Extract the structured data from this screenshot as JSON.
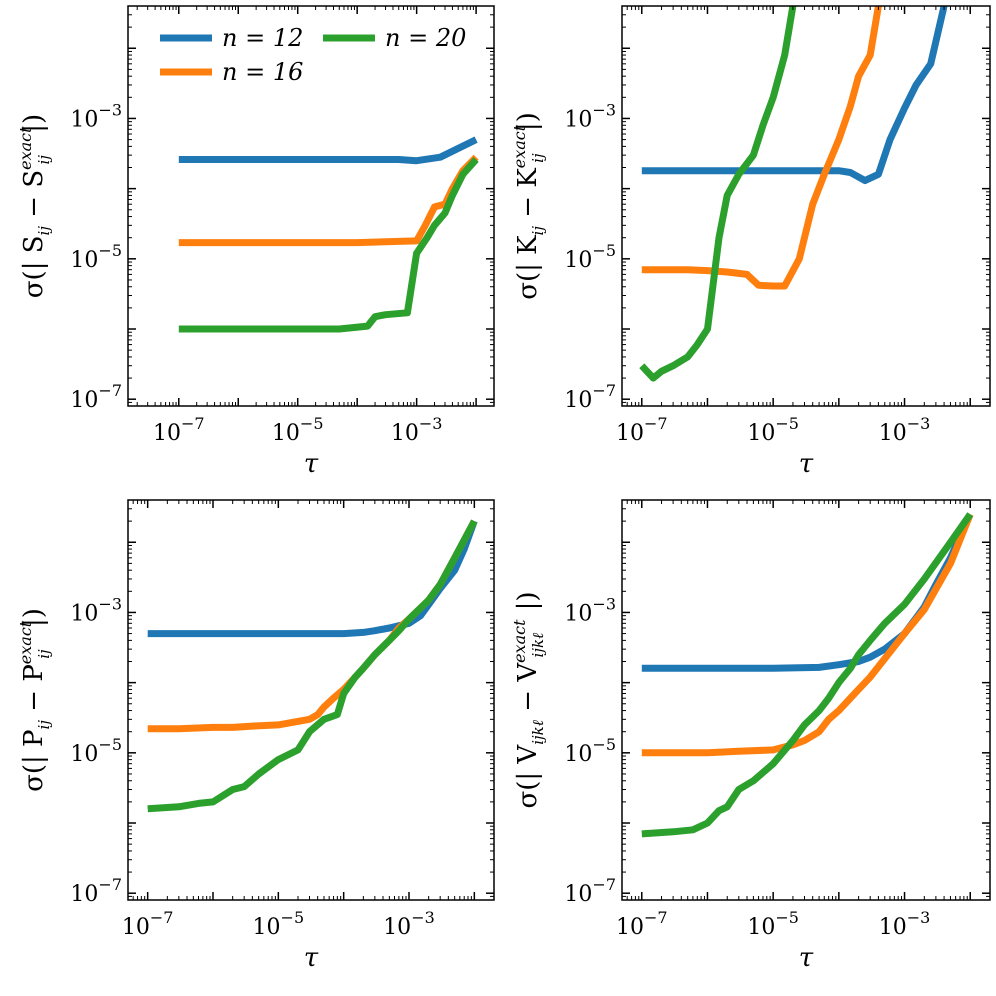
{
  "legend": {
    "location": "upper left of first panel",
    "entries": [
      {
        "text": "n = 12",
        "color": "#1f77b4"
      },
      {
        "text": "n = 16",
        "color": "#ff7f0e"
      },
      {
        "text": "n = 20",
        "color": "#2ca02c"
      }
    ]
  },
  "chart_data": [
    {
      "type": "line",
      "xlabel": "τ",
      "ylabel": {
        "pre": "σ(| S",
        "sub1": "ij",
        "mid": " − S",
        "sup": "exact",
        "sub2": "ij",
        "post": " |)"
      },
      "x_scale": "log",
      "y_scale": "log",
      "xlim": [
        1.4e-08,
        0.02
      ],
      "ylim": [
        8e-08,
        0.04
      ],
      "x_ticks": [
        "1e-7",
        "1e-5",
        "1e-3"
      ],
      "y_ticks": [
        "1e-7",
        "1e-5",
        "1e-3"
      ],
      "grid": false,
      "series": [
        {
          "name": "n = 12",
          "color": "#1f77b4",
          "x": [
            1e-07,
            1e-06,
            1e-05,
            0.0001,
            0.0005,
            0.001,
            0.0025,
            0.01
          ],
          "y": [
            0.00026,
            0.00026,
            0.00026,
            0.00026,
            0.00026,
            0.00025,
            0.00028,
            0.0005
          ]
        },
        {
          "name": "n = 16",
          "color": "#ff7f0e",
          "x": [
            1e-07,
            1e-06,
            1e-05,
            0.0001,
            0.001,
            0.0014,
            0.002,
            0.003,
            0.004,
            0.006,
            0.01
          ],
          "y": [
            1.7e-05,
            1.7e-05,
            1.7e-05,
            1.7e-05,
            1.8e-05,
            3e-05,
            5.5e-05,
            6e-05,
            0.0001,
            0.00018,
            0.00028
          ]
        },
        {
          "name": "n = 20",
          "color": "#2ca02c",
          "x": [
            1e-07,
            1e-05,
            5e-05,
            0.00015,
            0.0002,
            0.0003,
            0.0007,
            0.001,
            0.0015,
            0.002,
            0.003,
            0.004,
            0.006,
            0.01
          ],
          "y": [
            1e-06,
            1e-06,
            1e-06,
            1.1e-06,
            1.5e-06,
            1.6e-06,
            1.7e-06,
            1.2e-05,
            2e-05,
            3e-05,
            4.5e-05,
            8e-05,
            0.00016,
            0.00026
          ]
        }
      ]
    },
    {
      "type": "line",
      "xlabel": "τ",
      "ylabel": {
        "pre": "σ(| K",
        "sub1": "ij",
        "mid": " − K",
        "sup": "exact",
        "sub2": "ij",
        "post": " |)"
      },
      "x_scale": "log",
      "y_scale": "log",
      "xlim": [
        5e-08,
        0.02
      ],
      "ylim": [
        8e-08,
        0.04
      ],
      "x_ticks": [
        "1e-7",
        "1e-5",
        "1e-3"
      ],
      "y_ticks": [
        "1e-7",
        "1e-5",
        "1e-3"
      ],
      "grid": false,
      "series": [
        {
          "name": "n = 12",
          "color": "#1f77b4",
          "x": [
            1e-07,
            1e-05,
            0.0001,
            0.00015,
            0.00025,
            0.0004,
            0.0006,
            0.001,
            0.0015,
            0.0025,
            0.004
          ],
          "y": [
            0.00018,
            0.00018,
            0.00018,
            0.00017,
            0.00013,
            0.00016,
            0.0005,
            0.0014,
            0.003,
            0.006,
            0.04
          ]
        },
        {
          "name": "n = 16",
          "color": "#ff7f0e",
          "x": [
            1e-07,
            5e-07,
            1e-06,
            2e-06,
            4e-06,
            6e-06,
            1e-05,
            1.5e-05,
            2.5e-05,
            4e-05,
            6e-05,
            0.0001,
            0.00015,
            0.0002,
            0.0003,
            0.0004
          ],
          "y": [
            7e-06,
            7e-06,
            6.8e-06,
            6.5e-06,
            6e-06,
            4.2e-06,
            4.1e-06,
            4.1e-06,
            1e-05,
            6e-05,
            0.00016,
            0.0005,
            0.0015,
            0.004,
            0.008,
            0.04
          ]
        },
        {
          "name": "n = 20",
          "color": "#2ca02c",
          "x": [
            1e-07,
            1.5e-07,
            2e-07,
            3e-07,
            5e-07,
            7e-07,
            1e-06,
            1.5e-06,
            2e-06,
            3e-06,
            5e-06,
            7e-06,
            1e-05,
            1.5e-05,
            2e-05
          ],
          "y": [
            3e-07,
            2e-07,
            2.5e-07,
            3e-07,
            4e-07,
            6e-07,
            1e-06,
            2e-05,
            8e-05,
            0.00016,
            0.0003,
            0.0008,
            0.002,
            0.008,
            0.04
          ]
        }
      ]
    },
    {
      "type": "line",
      "xlabel": "τ",
      "ylabel": {
        "pre": "σ(| P",
        "sub1": "ij",
        "mid": " − P",
        "sup": "exact",
        "sub2": "ij",
        "post": " |)"
      },
      "x_scale": "log",
      "y_scale": "log",
      "xlim": [
        5e-08,
        0.02
      ],
      "ylim": [
        8e-08,
        0.04
      ],
      "x_ticks": [
        "1e-7",
        "1e-5",
        "1e-3"
      ],
      "y_ticks": [
        "1e-7",
        "1e-5",
        "1e-3"
      ],
      "grid": false,
      "series": [
        {
          "name": "n = 12",
          "color": "#1f77b4",
          "x": [
            1e-07,
            1e-06,
            1e-05,
            5e-05,
            0.0001,
            0.0002,
            0.0003,
            0.0005,
            0.001,
            0.0015,
            0.002,
            0.003,
            0.005,
            0.007,
            0.01
          ],
          "y": [
            0.0005,
            0.0005,
            0.0005,
            0.0005,
            0.0005,
            0.00052,
            0.00055,
            0.0006,
            0.0007,
            0.0009,
            0.0013,
            0.0022,
            0.004,
            0.008,
            0.02
          ]
        },
        {
          "name": "n = 16",
          "color": "#ff7f0e",
          "x": [
            1e-07,
            3e-07,
            1e-06,
            2e-06,
            4e-06,
            1e-05,
            3e-05,
            4e-05,
            5e-05,
            7e-05,
            0.0001,
            0.00015,
            0.0002,
            0.0003,
            0.0005,
            0.0007,
            0.001,
            0.002,
            0.003,
            0.005,
            0.01
          ],
          "y": [
            2.2e-05,
            2.2e-05,
            2.3e-05,
            2.3e-05,
            2.4e-05,
            2.5e-05,
            3e-05,
            3.5e-05,
            4.5e-05,
            6e-05,
            8e-05,
            0.00012,
            0.00016,
            0.00025,
            0.0004,
            0.0006,
            0.0008,
            0.0015,
            0.0025,
            0.006,
            0.02
          ]
        },
        {
          "name": "n = 20",
          "color": "#2ca02c",
          "x": [
            1e-07,
            3e-07,
            6e-07,
            1e-06,
            2e-06,
            3e-06,
            5e-06,
            1e-05,
            2e-05,
            3e-05,
            5e-05,
            8e-05,
            0.0001,
            0.00015,
            0.0002,
            0.0003,
            0.0005,
            0.0007,
            0.001,
            0.002,
            0.003,
            0.005,
            0.01
          ],
          "y": [
            1.6e-06,
            1.7e-06,
            1.9e-06,
            2e-06,
            3e-06,
            3.3e-06,
            5e-06,
            8e-06,
            1.1e-05,
            2e-05,
            3e-05,
            3.5e-05,
            7e-05,
            0.00012,
            0.00016,
            0.00025,
            0.0004,
            0.00055,
            0.0008,
            0.0015,
            0.0025,
            0.006,
            0.02
          ]
        }
      ]
    },
    {
      "type": "line",
      "xlabel": "τ",
      "ylabel": {
        "pre": "σ(| V",
        "sub1": "ijkℓ",
        "mid": " − V",
        "sup": "exact",
        "sub2": "ijkℓ",
        "post": " |)"
      },
      "x_scale": "log",
      "y_scale": "log",
      "xlim": [
        5e-08,
        0.02
      ],
      "ylim": [
        8e-08,
        0.04
      ],
      "x_ticks": [
        "1e-7",
        "1e-5",
        "1e-3"
      ],
      "y_ticks": [
        "1e-7",
        "1e-5",
        "1e-3"
      ],
      "grid": false,
      "series": [
        {
          "name": "n = 12",
          "color": "#1f77b4",
          "x": [
            1e-07,
            1e-06,
            1e-05,
            5e-05,
            0.0001,
            0.0002,
            0.0003,
            0.0005,
            0.001,
            0.002,
            0.003,
            0.005,
            0.007,
            0.01
          ],
          "y": [
            0.00016,
            0.00016,
            0.00016,
            0.000165,
            0.00018,
            0.0002,
            0.00023,
            0.0003,
            0.0005,
            0.0012,
            0.0025,
            0.006,
            0.012,
            0.025
          ]
        },
        {
          "name": "n = 16",
          "color": "#ff7f0e",
          "x": [
            1e-07,
            1e-06,
            3e-06,
            1e-05,
            2e-05,
            3e-05,
            5e-05,
            7e-05,
            0.0001,
            0.00015,
            0.0002,
            0.0003,
            0.0005,
            0.001,
            0.002,
            0.005,
            0.01
          ],
          "y": [
            1e-05,
            1e-05,
            1.05e-05,
            1.1e-05,
            1.3e-05,
            1.5e-05,
            2e-05,
            3e-05,
            4e-05,
            6e-05,
            8e-05,
            0.00012,
            0.00022,
            0.0005,
            0.0011,
            0.005,
            0.025
          ]
        },
        {
          "name": "n = 20",
          "color": "#2ca02c",
          "x": [
            1e-07,
            3e-07,
            6e-07,
            1e-06,
            1.5e-06,
            2e-06,
            3e-06,
            5e-06,
            1e-05,
            2e-05,
            3e-05,
            5e-05,
            7e-05,
            0.0001,
            0.00015,
            0.0002,
            0.0003,
            0.0005,
            0.001,
            0.002,
            0.005,
            0.01
          ],
          "y": [
            7e-07,
            7.5e-07,
            8e-07,
            1e-06,
            1.5e-06,
            1.7e-06,
            3e-06,
            4e-06,
            7e-06,
            1.5e-05,
            2.5e-05,
            4e-05,
            6e-05,
            0.0001,
            0.00016,
            0.00025,
            0.0004,
            0.0007,
            0.0013,
            0.003,
            0.01,
            0.025
          ]
        }
      ]
    }
  ]
}
